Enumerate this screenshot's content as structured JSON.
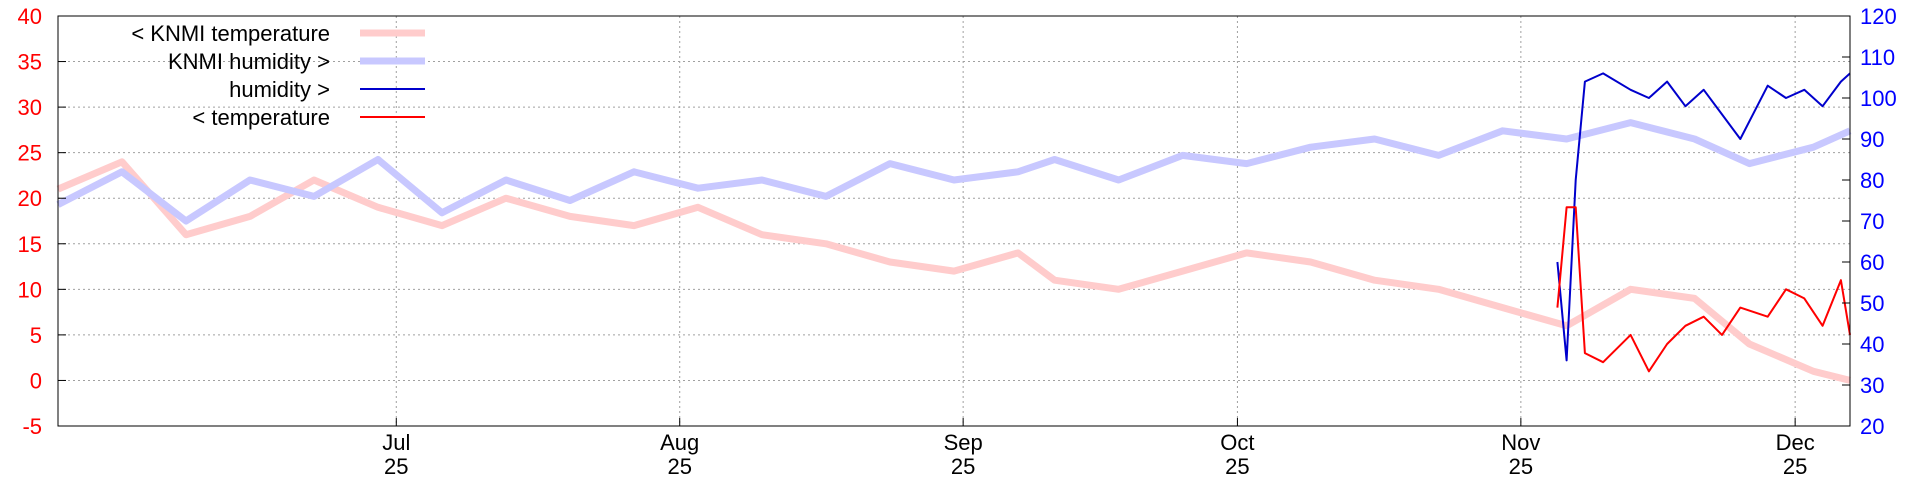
{
  "chart_data": {
    "type": "line",
    "x_ticks": [
      {
        "month": "Jul",
        "day": "25",
        "date": "2025-07-25"
      },
      {
        "month": "Aug",
        "day": "25",
        "date": "2025-08-25"
      },
      {
        "month": "Sep",
        "day": "25",
        "date": "2025-09-25"
      },
      {
        "month": "Oct",
        "day": "25",
        "date": "2025-10-25"
      },
      {
        "month": "Nov",
        "day": "25",
        "date": "2025-11-25"
      },
      {
        "month": "Dec",
        "day": "25",
        "date": "2025-12-25"
      }
    ],
    "xlim": [
      "2025-06-18",
      "2025-12-31"
    ],
    "y_left": {
      "ticks": [
        "40",
        "35",
        "30",
        "25",
        "20",
        "15",
        "10",
        "5",
        "0",
        "-5"
      ],
      "ylim": [
        -5,
        40
      ],
      "color": "#ff0000"
    },
    "y_right": {
      "ticks": [
        "120",
        "110",
        "100",
        "90",
        "80",
        "70",
        "60",
        "50",
        "40",
        "30",
        "20"
      ],
      "ylim": [
        20,
        120
      ],
      "color": "#0000ff"
    },
    "grid": true,
    "legend_position": "top-left",
    "series": [
      {
        "name": "< KNMI temperature",
        "axis": "left",
        "color": "#ffcccc",
        "points": [
          [
            "2025-06-18",
            21
          ],
          [
            "2025-06-25",
            24
          ],
          [
            "2025-07-02",
            16
          ],
          [
            "2025-07-09",
            18
          ],
          [
            "2025-07-16",
            22
          ],
          [
            "2025-07-23",
            19
          ],
          [
            "2025-07-30",
            17
          ],
          [
            "2025-08-06",
            20
          ],
          [
            "2025-08-13",
            18
          ],
          [
            "2025-08-20",
            17
          ],
          [
            "2025-08-27",
            19
          ],
          [
            "2025-09-03",
            16
          ],
          [
            "2025-09-10",
            15
          ],
          [
            "2025-09-17",
            13
          ],
          [
            "2025-09-24",
            12
          ],
          [
            "2025-10-01",
            14
          ],
          [
            "2025-10-05",
            11
          ],
          [
            "2025-10-12",
            10
          ],
          [
            "2025-10-19",
            12
          ],
          [
            "2025-10-26",
            14
          ],
          [
            "2025-11-02",
            13
          ],
          [
            "2025-11-09",
            11
          ],
          [
            "2025-11-16",
            10
          ],
          [
            "2025-11-23",
            8
          ],
          [
            "2025-11-30",
            6
          ],
          [
            "2025-12-07",
            10
          ],
          [
            "2025-12-14",
            9
          ],
          [
            "2025-12-20",
            4
          ],
          [
            "2025-12-27",
            1
          ],
          [
            "2025-12-31",
            0
          ]
        ]
      },
      {
        "name": "KNMI humidity >",
        "axis": "right",
        "color": "#c8c8ff",
        "points": [
          [
            "2025-06-18",
            74
          ],
          [
            "2025-06-25",
            82
          ],
          [
            "2025-07-02",
            70
          ],
          [
            "2025-07-09",
            80
          ],
          [
            "2025-07-16",
            76
          ],
          [
            "2025-07-23",
            85
          ],
          [
            "2025-07-30",
            72
          ],
          [
            "2025-08-06",
            80
          ],
          [
            "2025-08-13",
            75
          ],
          [
            "2025-08-20",
            82
          ],
          [
            "2025-08-27",
            78
          ],
          [
            "2025-09-03",
            80
          ],
          [
            "2025-09-10",
            76
          ],
          [
            "2025-09-17",
            84
          ],
          [
            "2025-09-24",
            80
          ],
          [
            "2025-10-01",
            82
          ],
          [
            "2025-10-05",
            85
          ],
          [
            "2025-10-12",
            80
          ],
          [
            "2025-10-19",
            86
          ],
          [
            "2025-10-26",
            84
          ],
          [
            "2025-11-02",
            88
          ],
          [
            "2025-11-09",
            90
          ],
          [
            "2025-11-16",
            86
          ],
          [
            "2025-11-23",
            92
          ],
          [
            "2025-11-30",
            90
          ],
          [
            "2025-12-07",
            94
          ],
          [
            "2025-12-14",
            90
          ],
          [
            "2025-12-20",
            84
          ],
          [
            "2025-12-27",
            88
          ],
          [
            "2025-12-31",
            92
          ]
        ]
      },
      {
        "name": "humidity >",
        "axis": "right",
        "color": "#0000cc",
        "points": [
          [
            "2025-11-29",
            60
          ],
          [
            "2025-11-30",
            36
          ],
          [
            "2025-12-01",
            80
          ],
          [
            "2025-12-02",
            104
          ],
          [
            "2025-12-04",
            106
          ],
          [
            "2025-12-07",
            102
          ],
          [
            "2025-12-09",
            100
          ],
          [
            "2025-12-11",
            104
          ],
          [
            "2025-12-13",
            98
          ],
          [
            "2025-12-15",
            102
          ],
          [
            "2025-12-17",
            96
          ],
          [
            "2025-12-19",
            90
          ],
          [
            "2025-12-22",
            103
          ],
          [
            "2025-12-24",
            100
          ],
          [
            "2025-12-26",
            102
          ],
          [
            "2025-12-28",
            98
          ],
          [
            "2025-12-30",
            104
          ],
          [
            "2025-12-31",
            106
          ]
        ]
      },
      {
        "name": "< temperature",
        "axis": "left",
        "color": "#ff0000",
        "points": [
          [
            "2025-11-29",
            8
          ],
          [
            "2025-11-30",
            19
          ],
          [
            "2025-12-01",
            19
          ],
          [
            "2025-12-02",
            3
          ],
          [
            "2025-12-04",
            2
          ],
          [
            "2025-12-07",
            5
          ],
          [
            "2025-12-09",
            1
          ],
          [
            "2025-12-11",
            4
          ],
          [
            "2025-12-13",
            6
          ],
          [
            "2025-12-15",
            7
          ],
          [
            "2025-12-17",
            5
          ],
          [
            "2025-12-19",
            8
          ],
          [
            "2025-12-22",
            7
          ],
          [
            "2025-12-24",
            10
          ],
          [
            "2025-12-26",
            9
          ],
          [
            "2025-12-28",
            6
          ],
          [
            "2025-12-30",
            11
          ],
          [
            "2025-12-31",
            5
          ]
        ]
      }
    ]
  }
}
